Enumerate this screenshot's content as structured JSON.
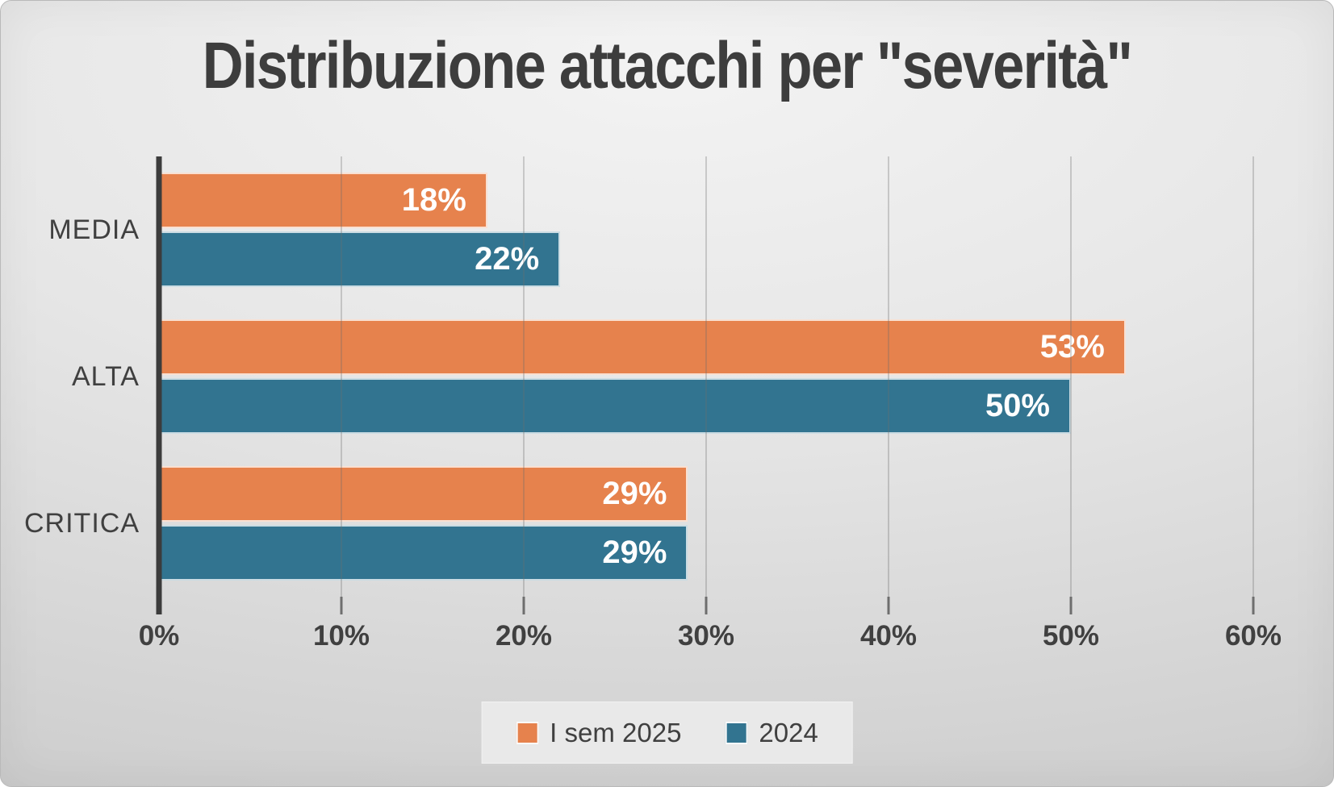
{
  "chart_data": {
    "type": "bar",
    "orientation": "horizontal",
    "title": "Distribuzione attacchi per \"severità\"",
    "categories": [
      "MEDIA",
      "ALTA",
      "CRITICA"
    ],
    "series": [
      {
        "name": "I sem 2025",
        "color": "#E6824D",
        "values": [
          18,
          53,
          29
        ]
      },
      {
        "name": "2024",
        "color": "#327490",
        "values": [
          22,
          50,
          29
        ]
      }
    ],
    "data_label_suffix": "%",
    "xlabel": "",
    "ylabel": "",
    "xlim": [
      0,
      60
    ],
    "x_tick_step": 10,
    "x_tick_labels": [
      "0%",
      "10%",
      "20%",
      "30%",
      "40%",
      "50%",
      "60%"
    ],
    "grid": true,
    "legend_position": "bottom"
  },
  "style": {
    "background_light": "#f3f3f3",
    "background_dark": "#cdcdcd",
    "title_color": "#3d3d3d",
    "label_color": "#404040",
    "axis_color": "#3c3c3c",
    "tick_color": "#6e6e6e",
    "gridline_color": "rgba(110,110,110,0.30)",
    "bar_label_color": "#ffffff",
    "legend_background": "#e9e9e9"
  }
}
